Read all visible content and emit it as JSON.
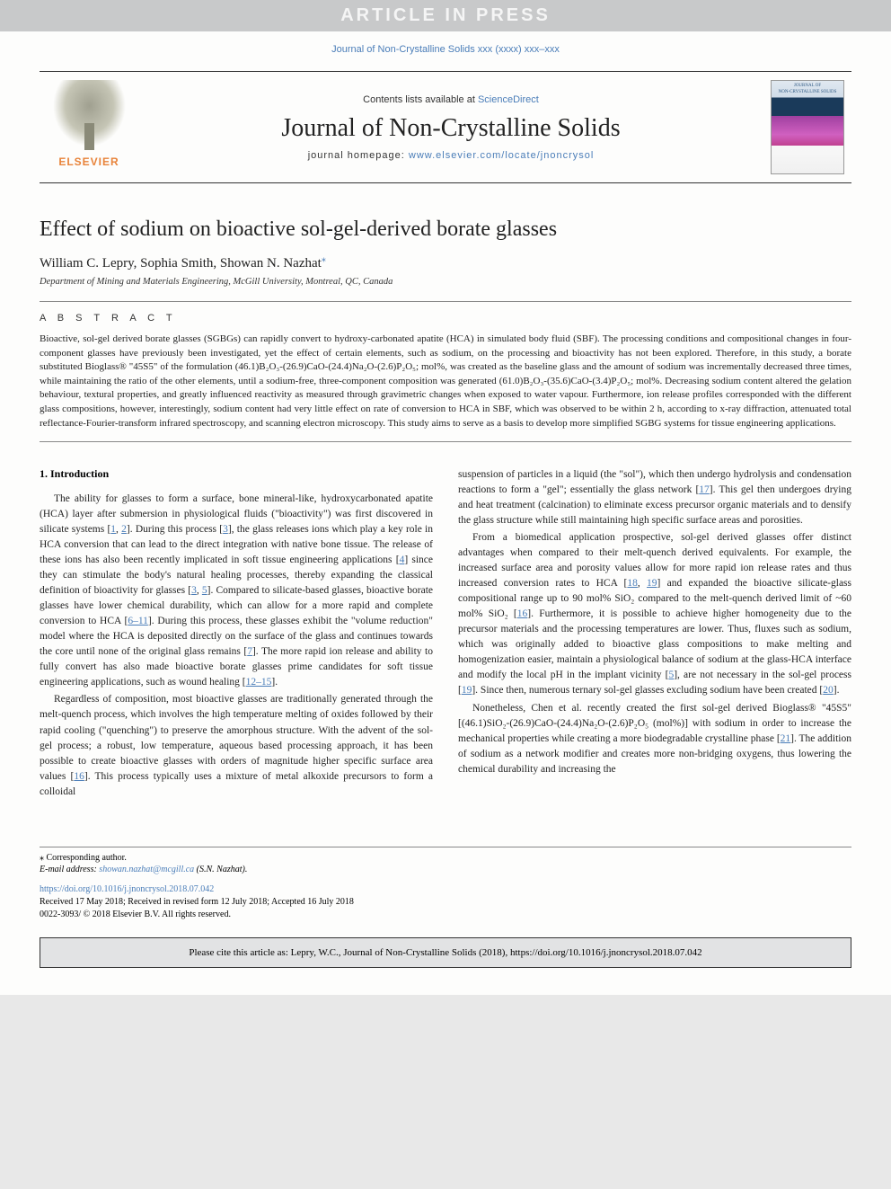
{
  "banner": "ARTICLE IN PRESS",
  "journal_ref_top": "Journal of Non-Crystalline Solids xxx (xxxx) xxx–xxx",
  "masthead": {
    "elsevier_label": "ELSEVIER",
    "contents_prefix": "Contents lists available at ",
    "contents_link": "ScienceDirect",
    "journal_title": "Journal of Non-Crystalline Solids",
    "homepage_prefix": "journal homepage: ",
    "homepage_link": "www.elsevier.com/locate/jnoncrysol"
  },
  "article": {
    "title": "Effect of sodium on bioactive sol-gel-derived borate glasses",
    "authors": "William C. Lepry, Sophia Smith, Showan N. Nazhat",
    "corr_marker": "⁎",
    "affiliation": "Department of Mining and Materials Engineering, McGill University, Montreal, QC, Canada"
  },
  "abstract": {
    "label": "A B S T R A C T",
    "text": "Bioactive, sol-gel derived borate glasses (SGBGs) can rapidly convert to hydroxy-carbonated apatite (HCA) in simulated body fluid (SBF). The processing conditions and compositional changes in four-component glasses have previously been investigated, yet the effect of certain elements, such as sodium, on the processing and bioactivity has not been explored. Therefore, in this study, a borate substituted Bioglass® \"45S5\" of the formulation (46.1)B₂O₃-(26.9)CaO-(24.4)Na₂O-(2.6)P₂O₅; mol%, was created as the baseline glass and the amount of sodium was incrementally decreased three times, while maintaining the ratio of the other elements, until a sodium-free, three-component composition was generated (61.0)B₂O₃-(35.6)CaO-(3.4)P₂O₅; mol%. Decreasing sodium content altered the gelation behaviour, textural properties, and greatly influenced reactivity as measured through gravimetric changes when exposed to water vapour. Furthermore, ion release profiles corresponded with the different glass compositions, however, interestingly, sodium content had very little effect on rate of conversion to HCA in SBF, which was observed to be within 2 h, according to x-ray diffraction, attenuated total reflectance-Fourier-transform infrared spectroscopy, and scanning electron microscopy. This study aims to serve as a basis to develop more simplified SGBG systems for tissue engineering applications."
  },
  "section1_heading": "1. Introduction",
  "col_left": {
    "p1_a": "The ability for glasses to form a surface, bone mineral-like, hydroxycarbonated apatite (HCA) layer after submersion in physiological fluids (\"bioactivity\") was first discovered in silicate systems [",
    "p1_r1": "1",
    "p1_b": ", ",
    "p1_r2": "2",
    "p1_c": "]. During this process [",
    "p1_r3": "3",
    "p1_d": "], the glass releases ions which play a key role in HCA conversion that can lead to the direct integration with native bone tissue. The release of these ions has also been recently implicated in soft tissue engineering applications [",
    "p1_r4": "4",
    "p1_e": "] since they can stimulate the body's natural healing processes, thereby expanding the classical definition of bioactivity for glasses [",
    "p1_r5": "3",
    "p1_f": ", ",
    "p1_r6": "5",
    "p1_g": "]. Compared to silicate-based glasses, bioactive borate glasses have lower chemical durability, which can allow for a more rapid and complete conversion to HCA [",
    "p1_r7": "6–11",
    "p1_h": "]. During this process, these glasses exhibit the \"volume reduction\" model where the HCA is deposited directly on the surface of the glass and continues towards the core until none of the original glass remains [",
    "p1_r8": "7",
    "p1_i": "]. The more rapid ion release and ability to fully convert has also made bioactive borate glasses prime candidates for soft tissue engineering applications, such as wound healing [",
    "p1_r9": "12–15",
    "p1_j": "].",
    "p2_a": "Regardless of composition, most bioactive glasses are traditionally generated through the melt-quench process, which involves the high temperature melting of oxides followed by their rapid cooling (\"quenching\") to preserve the amorphous structure. With the advent of the sol-gel process; a robust, low temperature, aqueous based processing approach, it has been possible to create bioactive glasses with orders of magnitude higher specific surface area values [",
    "p2_r1": "16",
    "p2_b": "]. This process typically uses a mixture of metal alkoxide precursors to form a colloidal"
  },
  "col_right": {
    "p1_a": "suspension of particles in a liquid (the \"sol\"), which then undergo hydrolysis and condensation reactions to form a \"gel\"; essentially the glass network [",
    "p1_r1": "17",
    "p1_b": "]. This gel then undergoes drying and heat treatment (calcination) to eliminate excess precursor organic materials and to densify the glass structure while still maintaining high specific surface areas and porosities.",
    "p2_a": "From a biomedical application prospective, sol-gel derived glasses offer distinct advantages when compared to their melt-quench derived equivalents. For example, the increased surface area and porosity values allow for more rapid ion release rates and thus increased conversion rates to HCA [",
    "p2_r1": "18",
    "p2_b": ", ",
    "p2_r2": "19",
    "p2_c": "] and expanded the bioactive silicate-glass compositional range up to 90 mol% SiO₂ compared to the melt-quench derived limit of ~60 mol% SiO₂ [",
    "p2_r3": "16",
    "p2_d": "]. Furthermore, it is possible to achieve higher homogeneity due to the precursor materials and the processing temperatures are lower. Thus, fluxes such as sodium, which was originally added to bioactive glass compositions to make melting and homogenization easier, maintain a physiological balance of sodium at the glass-HCA interface and modify the local pH in the implant vicinity [",
    "p2_r4": "5",
    "p2_e": "], are not necessary in the sol-gel process [",
    "p2_r5": "19",
    "p2_f": "]. Since then, numerous ternary sol-gel glasses excluding sodium have been created [",
    "p2_r6": "20",
    "p2_g": "].",
    "p3_a": "Nonetheless, Chen et al. recently created the first sol-gel derived Bioglass® \"45S5\" [(46.1)SiO₂-(26.9)CaO-(24.4)Na₂O-(2.6)P₂O₅ (mol%)] with sodium in order to increase the mechanical properties while creating a more biodegradable crystalline phase [",
    "p3_r1": "21",
    "p3_b": "]. The addition of sodium as a network modifier and creates more non-bridging oxygens, thus lowering the chemical durability and increasing the"
  },
  "footer": {
    "corr": "⁎ Corresponding author.",
    "email_prefix": "E-mail address: ",
    "email": "showan.nazhat@mcgill.ca",
    "email_suffix": " (S.N. Nazhat).",
    "doi": "https://doi.org/10.1016/j.jnoncrysol.2018.07.042",
    "received": "Received 17 May 2018; Received in revised form 12 July 2018; Accepted 16 July 2018",
    "copyright": "0022-3093/ © 2018 Elsevier B.V. All rights reserved.",
    "cite": "Please cite this article as: Lepry, W.C., Journal of Non-Crystalline Solids (2018), https://doi.org/10.1016/j.jnoncrysol.2018.07.042"
  },
  "colors": {
    "link": "#4a7db8",
    "banner_bg": "#c8c9ca",
    "elsevier_orange": "#e8833a",
    "citebox_bg": "#e2e3e4"
  }
}
